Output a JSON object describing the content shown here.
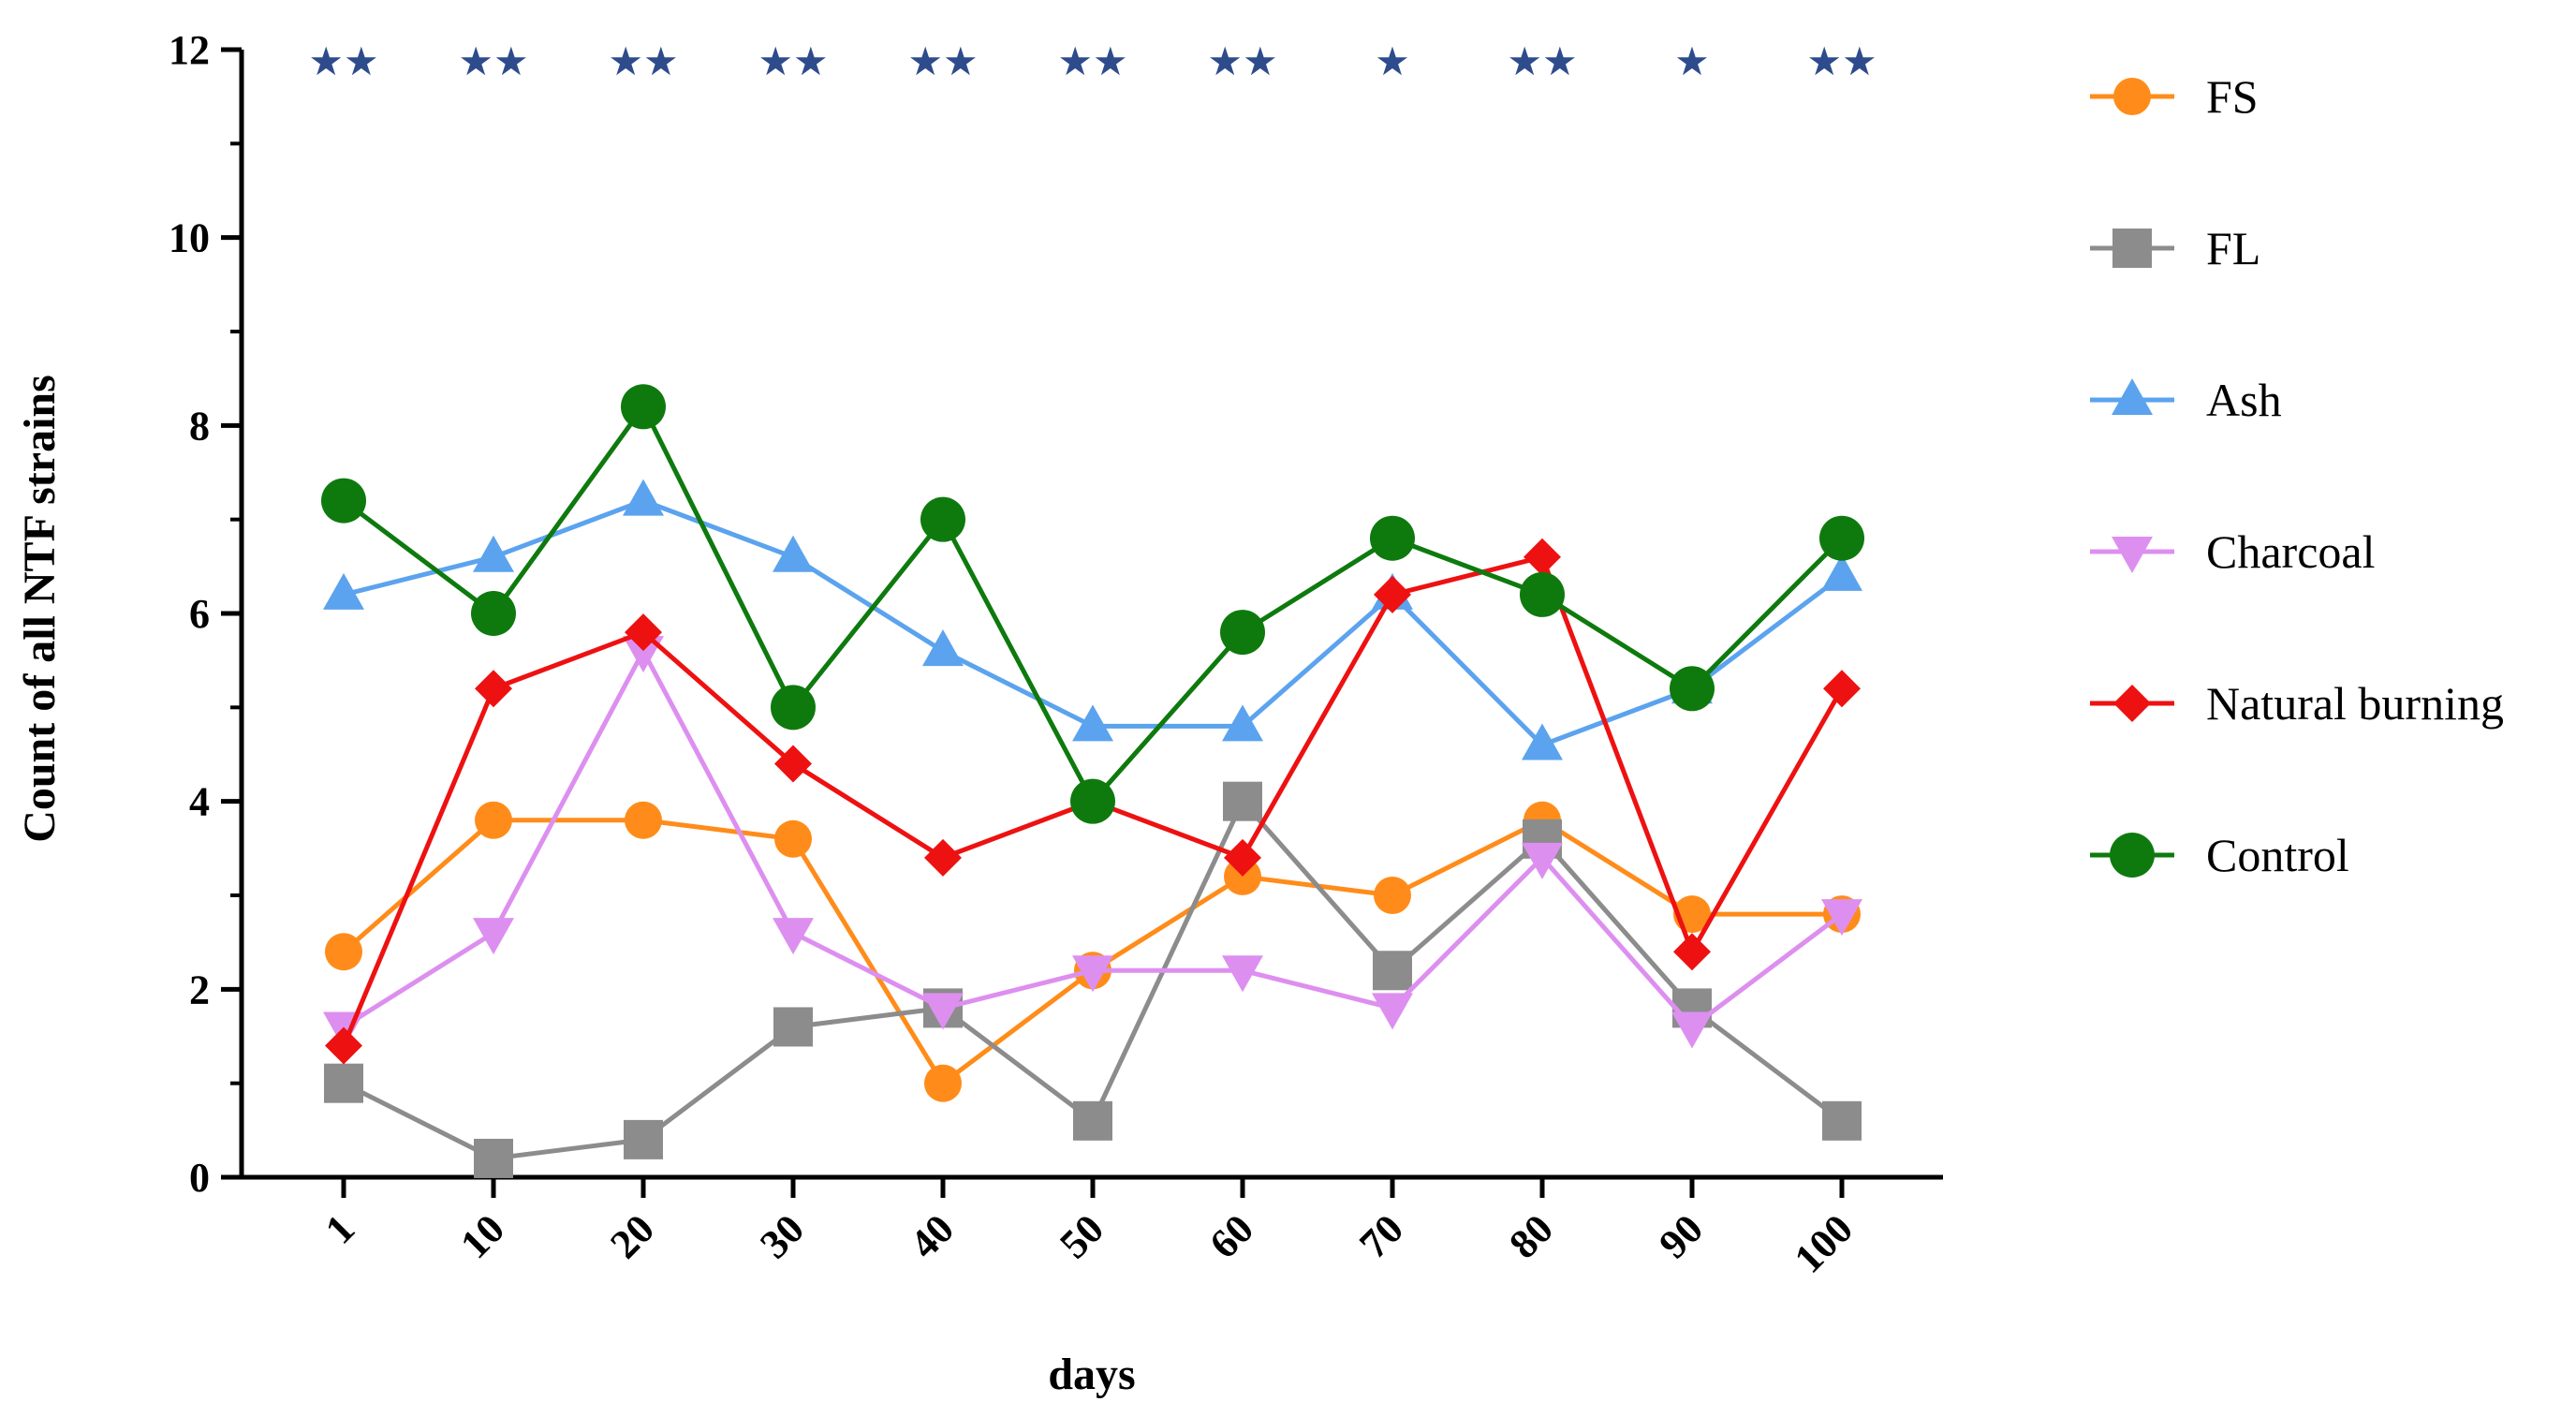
{
  "chart_data": {
    "type": "line",
    "title": "",
    "xlabel": "days",
    "ylabel": "Count of all NTF strains",
    "categories": [
      "1",
      "10",
      "20",
      "30",
      "40",
      "50",
      "60",
      "70",
      "80",
      "90",
      "100"
    ],
    "ylim": [
      0,
      12
    ],
    "yticks": [
      "0",
      "2",
      "4",
      "6",
      "8",
      "10",
      "12"
    ],
    "grid": false,
    "legend_position": "right",
    "significance": [
      "★★",
      "★★",
      "★★",
      "★★",
      "★★",
      "★★",
      "★★",
      "★",
      "★★",
      "★",
      "★★"
    ],
    "significance_color": "#2E4B8C",
    "series": [
      {
        "name": "FS",
        "color": "#FF8C1A",
        "marker": "circle",
        "values": [
          2.4,
          3.8,
          3.8,
          3.6,
          1.0,
          2.2,
          3.2,
          3.0,
          3.8,
          2.8,
          2.8
        ]
      },
      {
        "name": "FL",
        "color": "#8C8C8C",
        "marker": "square",
        "values": [
          1.0,
          0.2,
          0.4,
          1.6,
          1.8,
          0.6,
          4.0,
          2.2,
          3.6,
          1.8,
          0.6
        ]
      },
      {
        "name": "Ash",
        "color": "#5BA3EE",
        "marker": "triangle-up",
        "values": [
          6.2,
          6.6,
          7.2,
          6.6,
          5.6,
          4.8,
          4.8,
          6.2,
          4.6,
          5.2,
          6.4
        ]
      },
      {
        "name": "Charcoal",
        "color": "#DD8FF0",
        "marker": "triangle-down",
        "values": [
          1.6,
          2.6,
          5.6,
          2.6,
          1.8,
          2.2,
          2.2,
          1.8,
          3.4,
          1.6,
          2.8
        ]
      },
      {
        "name": "Natural burning",
        "color": "#EE1111",
        "marker": "diamond",
        "values": [
          1.4,
          5.2,
          5.8,
          4.4,
          3.4,
          4.0,
          3.4,
          6.2,
          6.6,
          2.4,
          5.2
        ]
      },
      {
        "name": "Control",
        "color": "#0E7A0E",
        "marker": "circle-large",
        "values": [
          7.2,
          6.0,
          8.2,
          5.0,
          7.0,
          4.0,
          5.8,
          6.8,
          6.2,
          5.2,
          6.8
        ]
      }
    ]
  }
}
